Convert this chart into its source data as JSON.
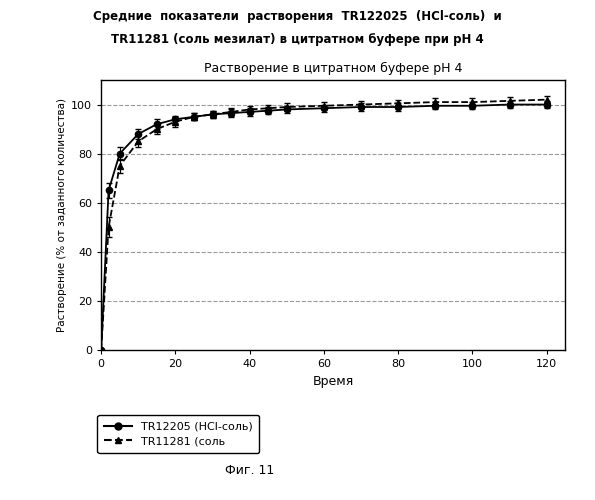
{
  "title_top_line1": "Средние  показатели  растворения  TR122025  (HCl-соль)  и",
  "title_top_line2": "TR11281 (соль мезилат) в цитратном буфере при pH 4",
  "chart_title": "Растворение в цитратном буфере pH 4",
  "xlabel": "Время",
  "ylabel": "Растворение (% от заданного количества)",
  "fig_caption": "Фиг. 11",
  "legend_entries": [
    "TR12205 (HCl-соль)",
    "TR11281 (соль"
  ],
  "xlim": [
    0,
    125
  ],
  "ylim": [
    0,
    110
  ],
  "xticks": [
    0,
    20,
    40,
    60,
    80,
    100,
    120
  ],
  "yticks": [
    0,
    20,
    40,
    60,
    80,
    100
  ],
  "grid_yticks": [
    20,
    40,
    60,
    80,
    100
  ],
  "series1_x": [
    0,
    2,
    5,
    10,
    15,
    20,
    25,
    30,
    35,
    40,
    45,
    50,
    60,
    70,
    80,
    90,
    100,
    110,
    120
  ],
  "series1_y": [
    0,
    65,
    80,
    88,
    92,
    94,
    95,
    96,
    96.5,
    97,
    97.5,
    98,
    98.5,
    99,
    99,
    99.5,
    99.5,
    100,
    100
  ],
  "series1_err": [
    0,
    3,
    2.5,
    2,
    2,
    1.5,
    1.5,
    1.5,
    1.5,
    1.5,
    1.5,
    1.5,
    1.5,
    1.5,
    1.5,
    1.5,
    1.5,
    1.5,
    1.5
  ],
  "series2_x": [
    0,
    2,
    5,
    10,
    15,
    20,
    25,
    30,
    35,
    40,
    45,
    50,
    60,
    70,
    80,
    90,
    100,
    110,
    120
  ],
  "series2_y": [
    0,
    50,
    75,
    85,
    90,
    93,
    95,
    96,
    97,
    98,
    98.5,
    99,
    99.5,
    100,
    100.5,
    101,
    101,
    101.5,
    102
  ],
  "series2_err": [
    0,
    4,
    3,
    2.5,
    2,
    2,
    1.5,
    1.5,
    1.5,
    1.5,
    1.5,
    1.5,
    1.5,
    1.5,
    1.5,
    1.5,
    1.5,
    1.5,
    1.5
  ],
  "color1": "#000000",
  "color2": "#000000",
  "bg_color": "#ffffff",
  "plot_bg_color": "#ffffff"
}
